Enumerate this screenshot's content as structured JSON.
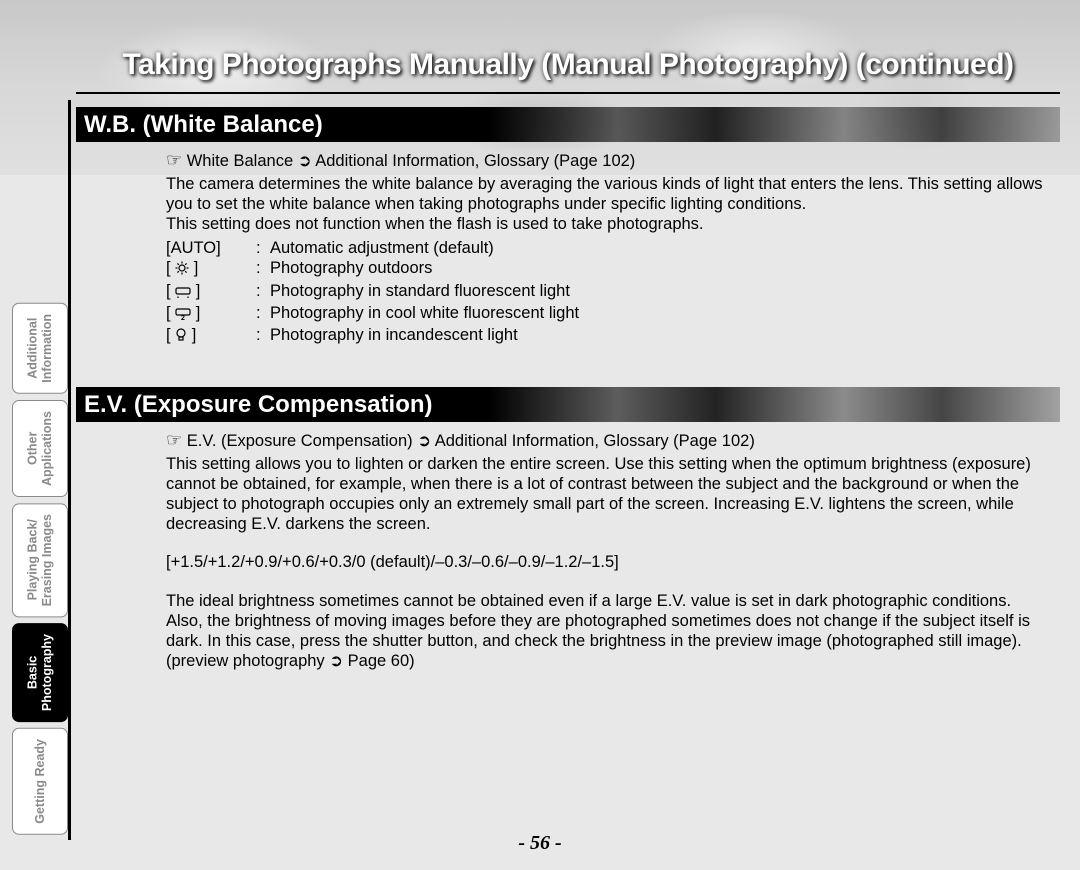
{
  "page_title": "Taking Photographs Manually (Manual Photography) (continued)",
  "page_number": "- 56 -",
  "sidebar": {
    "tabs": [
      {
        "label": "Getting Ready",
        "active": false
      },
      {
        "label": "Basic\nPhotography",
        "active": true
      },
      {
        "label": "Playing Back/\nErasing Images",
        "active": false
      },
      {
        "label": "Other\nApplications",
        "active": false
      },
      {
        "label": "Additional\nInformation",
        "active": false
      }
    ]
  },
  "wb": {
    "heading": "W.B. (White Balance)",
    "ref": "White Balance ➲ Additional Information, Glossary (Page 102)",
    "para1": "The camera determines the white balance by averaging the various kinds of light that enters the lens. This setting allows you to set the white balance when taking photographs under specific lighting conditions.",
    "para2": "This setting does not function when the flash is used to take photographs.",
    "options": [
      {
        "label": "[AUTO]",
        "icon": "",
        "desc": "Automatic adjustment (default)"
      },
      {
        "label": "",
        "icon": "sun",
        "desc": "Photography outdoors"
      },
      {
        "label": "",
        "icon": "fluor1",
        "desc": "Photography in standard fluorescent light"
      },
      {
        "label": "",
        "icon": "fluor2",
        "desc": "Photography in cool white fluorescent light"
      },
      {
        "label": "",
        "icon": "bulb",
        "desc": "Photography in incandescent light"
      }
    ]
  },
  "ev": {
    "heading": "E.V. (Exposure Compensation)",
    "ref": "E.V. (Exposure Compensation) ➲ Additional Information, Glossary (Page 102)",
    "para1": "This setting allows you to lighten or darken the entire screen. Use this setting when the optimum brightness (exposure) cannot be obtained, for example, when there is a lot of contrast between the subject and the background or when the subject to photograph occupies only an extremely small part of the screen. Increasing E.V. lightens the screen, while decreasing E.V. darkens the screen.",
    "values": "[+1.5/+1.2/+0.9/+0.6/+0.3/0 (default)/–0.3/–0.6/–0.9/–1.2/–1.5]",
    "para2": "The ideal brightness sometimes cannot be obtained even if a large E.V. value is set in dark photographic conditions.",
    "para3": "Also, the brightness of moving images before they are photographed sometimes does not change if the subject itself is dark. In this case, press the shutter button, and check the brightness in the preview image (photographed still image).",
    "preview_ref": "(preview photography ➲ Page 60)"
  }
}
